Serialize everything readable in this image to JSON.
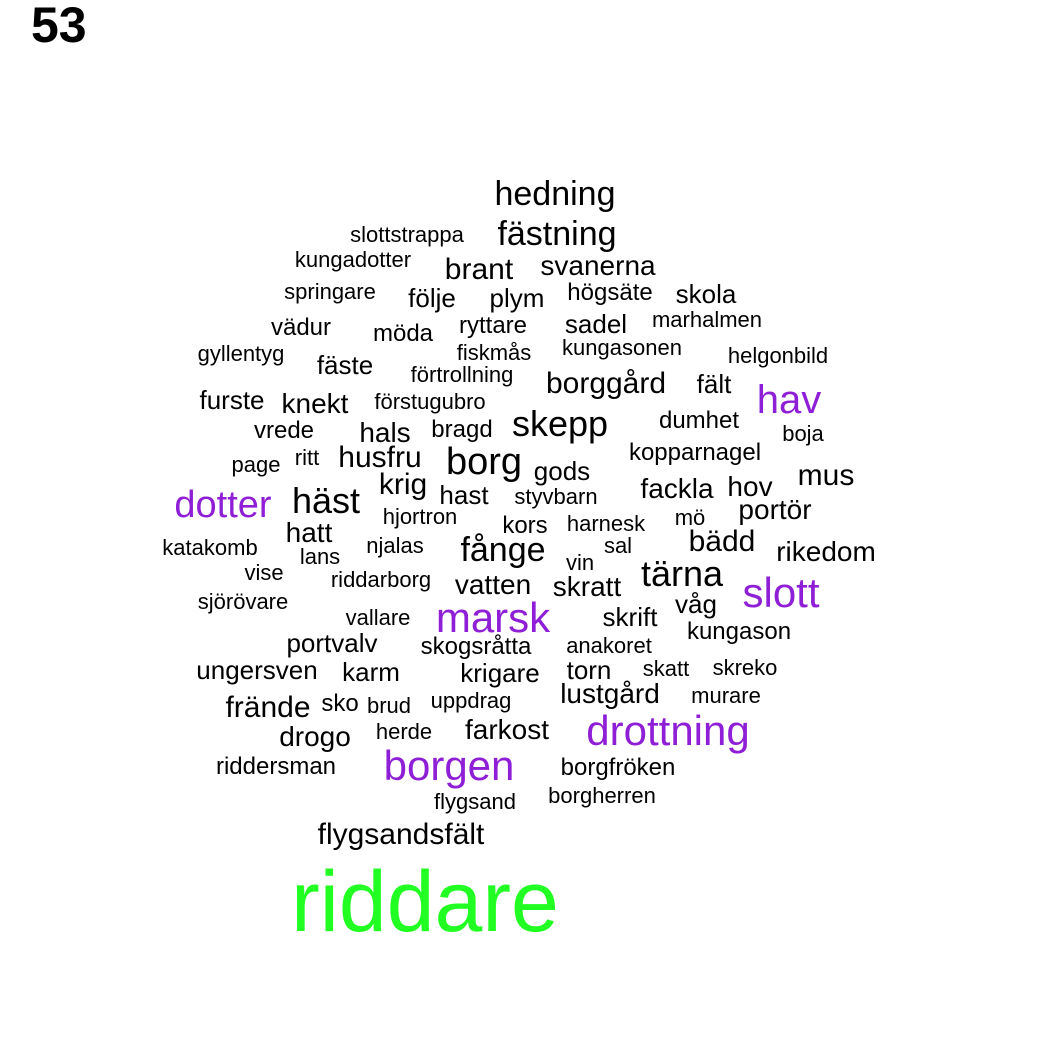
{
  "figure_number": "53",
  "colors": {
    "black": "#000000",
    "purple": "#8f1fd6",
    "green": "#22ff22"
  },
  "words": [
    {
      "text": "riddare",
      "color": "green"
    },
    {
      "text": "hedning",
      "color": "black"
    },
    {
      "text": "slottstrappa",
      "color": "black"
    },
    {
      "text": "fästning",
      "color": "black"
    },
    {
      "text": "kungadotter",
      "color": "black"
    },
    {
      "text": "brant",
      "color": "black"
    },
    {
      "text": "svanerna",
      "color": "black"
    },
    {
      "text": "springare",
      "color": "black"
    },
    {
      "text": "följe",
      "color": "black"
    },
    {
      "text": "plym",
      "color": "black"
    },
    {
      "text": "högsäte",
      "color": "black"
    },
    {
      "text": "skola",
      "color": "black"
    },
    {
      "text": "vädur",
      "color": "black"
    },
    {
      "text": "möda",
      "color": "black"
    },
    {
      "text": "ryttare",
      "color": "black"
    },
    {
      "text": "sadel",
      "color": "black"
    },
    {
      "text": "marhalmen",
      "color": "black"
    },
    {
      "text": "gyllentyg",
      "color": "black"
    },
    {
      "text": "fiskmås",
      "color": "black"
    },
    {
      "text": "kungasonen",
      "color": "black"
    },
    {
      "text": "helgonbild",
      "color": "black"
    },
    {
      "text": "fäste",
      "color": "black"
    },
    {
      "text": "förtrollning",
      "color": "black"
    },
    {
      "text": "borggård",
      "color": "black"
    },
    {
      "text": "fält",
      "color": "black"
    },
    {
      "text": "hav",
      "color": "purple"
    },
    {
      "text": "furste",
      "color": "black"
    },
    {
      "text": "knekt",
      "color": "black"
    },
    {
      "text": "förstugubro",
      "color": "black"
    },
    {
      "text": "skepp",
      "color": "black"
    },
    {
      "text": "dumhet",
      "color": "black"
    },
    {
      "text": "vrede",
      "color": "black"
    },
    {
      "text": "hals",
      "color": "black"
    },
    {
      "text": "bragd",
      "color": "black"
    },
    {
      "text": "boja",
      "color": "black"
    },
    {
      "text": "kopparnagel",
      "color": "black"
    },
    {
      "text": "page",
      "color": "black"
    },
    {
      "text": "ritt",
      "color": "black"
    },
    {
      "text": "husfru",
      "color": "black"
    },
    {
      "text": "borg",
      "color": "black"
    },
    {
      "text": "gods",
      "color": "black"
    },
    {
      "text": "mus",
      "color": "black"
    },
    {
      "text": "dotter",
      "color": "purple"
    },
    {
      "text": "häst",
      "color": "black"
    },
    {
      "text": "krig",
      "color": "black"
    },
    {
      "text": "hast",
      "color": "black"
    },
    {
      "text": "styvbarn",
      "color": "black"
    },
    {
      "text": "fackla",
      "color": "black"
    },
    {
      "text": "hov",
      "color": "black"
    },
    {
      "text": "portör",
      "color": "black"
    },
    {
      "text": "hjortron",
      "color": "black"
    },
    {
      "text": "kors",
      "color": "black"
    },
    {
      "text": "harnesk",
      "color": "black"
    },
    {
      "text": "mö",
      "color": "black"
    },
    {
      "text": "hatt",
      "color": "black"
    },
    {
      "text": "katakomb",
      "color": "black"
    },
    {
      "text": "lans",
      "color": "black"
    },
    {
      "text": "njalas",
      "color": "black"
    },
    {
      "text": "fånge",
      "color": "black"
    },
    {
      "text": "vin",
      "color": "black"
    },
    {
      "text": "sal",
      "color": "black"
    },
    {
      "text": "bädd",
      "color": "black"
    },
    {
      "text": "rikedom",
      "color": "black"
    },
    {
      "text": "vise",
      "color": "black"
    },
    {
      "text": "riddarborg",
      "color": "black"
    },
    {
      "text": "vatten",
      "color": "black"
    },
    {
      "text": "skratt",
      "color": "black"
    },
    {
      "text": "tärna",
      "color": "black"
    },
    {
      "text": "slott",
      "color": "purple"
    },
    {
      "text": "sjörövare",
      "color": "black"
    },
    {
      "text": "våg",
      "color": "black"
    },
    {
      "text": "vallare",
      "color": "black"
    },
    {
      "text": "marsk",
      "color": "purple"
    },
    {
      "text": "skrift",
      "color": "black"
    },
    {
      "text": "kungason",
      "color": "black"
    },
    {
      "text": "portvalv",
      "color": "black"
    },
    {
      "text": "skogsråtta",
      "color": "black"
    },
    {
      "text": "anakoret",
      "color": "black"
    },
    {
      "text": "ungersven",
      "color": "black"
    },
    {
      "text": "karm",
      "color": "black"
    },
    {
      "text": "krigare",
      "color": "black"
    },
    {
      "text": "torn",
      "color": "black"
    },
    {
      "text": "skatt",
      "color": "black"
    },
    {
      "text": "skreko",
      "color": "black"
    },
    {
      "text": "lustgård",
      "color": "black"
    },
    {
      "text": "murare",
      "color": "black"
    },
    {
      "text": "frände",
      "color": "black"
    },
    {
      "text": "sko",
      "color": "black"
    },
    {
      "text": "brud",
      "color": "black"
    },
    {
      "text": "uppdrag",
      "color": "black"
    },
    {
      "text": "drogo",
      "color": "black"
    },
    {
      "text": "herde",
      "color": "black"
    },
    {
      "text": "farkost",
      "color": "black"
    },
    {
      "text": "drottning",
      "color": "purple"
    },
    {
      "text": "riddersman",
      "color": "black"
    },
    {
      "text": "borgen",
      "color": "purple"
    },
    {
      "text": "borgfröken",
      "color": "black"
    },
    {
      "text": "flygsand",
      "color": "black"
    },
    {
      "text": "borgherren",
      "color": "black"
    },
    {
      "text": "flygsandsfält",
      "color": "black"
    }
  ]
}
